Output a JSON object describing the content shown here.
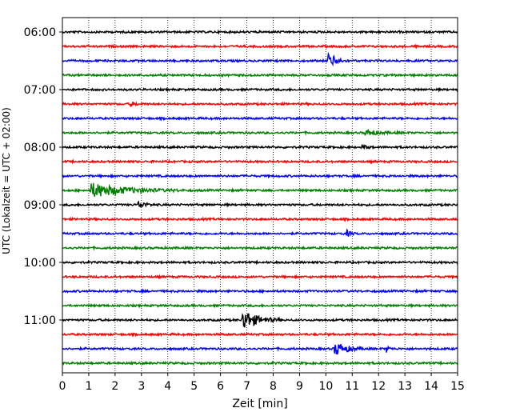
{
  "chart_data": {
    "type": "line",
    "title": "",
    "xlabel": "Zeit  [min]",
    "ylabel": "UTC (Lokalzeit = UTC + 02:00)",
    "xlim": [
      0,
      15
    ],
    "x_ticks": [
      "0",
      "1",
      "2",
      "3",
      "4",
      "5",
      "6",
      "7",
      "8",
      "9",
      "10",
      "11",
      "12",
      "13",
      "14",
      "15"
    ],
    "y_tick_labels": [
      "06:00",
      "07:00",
      "08:00",
      "09:00",
      "10:00",
      "11:00"
    ],
    "grid": {
      "vertical_dotted": true
    },
    "trace_colors": [
      "#000000",
      "#ff0000",
      "#0000ff",
      "#008000"
    ],
    "traces": [
      {
        "start": "06:00",
        "color": "#000000",
        "events": []
      },
      {
        "start": "06:15",
        "color": "#ff0000",
        "events": []
      },
      {
        "start": "06:30",
        "color": "#0000ff",
        "events": [
          {
            "t_min": 10.1,
            "amplitude": 0.55,
            "duration_min": 0.8
          }
        ]
      },
      {
        "start": "06:45",
        "color": "#008000",
        "events": []
      },
      {
        "start": "07:00",
        "color": "#000000",
        "events": []
      },
      {
        "start": "07:15",
        "color": "#ff0000",
        "events": [
          {
            "t_min": 2.6,
            "amplitude": 0.15,
            "duration_min": 0.5
          }
        ]
      },
      {
        "start": "07:30",
        "color": "#0000ff",
        "events": []
      },
      {
        "start": "07:45",
        "color": "#008000",
        "events": [
          {
            "t_min": 11.5,
            "amplitude": 0.15,
            "duration_min": 1.5
          }
        ]
      },
      {
        "start": "08:00",
        "color": "#000000",
        "events": [
          {
            "t_min": 11.4,
            "amplitude": 0.2,
            "duration_min": 0.4
          }
        ]
      },
      {
        "start": "08:15",
        "color": "#ff0000",
        "events": []
      },
      {
        "start": "08:30",
        "color": "#0000ff",
        "events": []
      },
      {
        "start": "08:45",
        "color": "#008000",
        "events": [
          {
            "t_min": 1.1,
            "amplitude": 0.5,
            "duration_min": 3.5
          }
        ]
      },
      {
        "start": "09:00",
        "color": "#000000",
        "events": [
          {
            "t_min": 2.9,
            "amplitude": 0.3,
            "duration_min": 0.6
          }
        ]
      },
      {
        "start": "09:15",
        "color": "#ff0000",
        "events": []
      },
      {
        "start": "09:30",
        "color": "#0000ff",
        "events": [
          {
            "t_min": 10.8,
            "amplitude": 0.2,
            "duration_min": 0.4
          }
        ]
      },
      {
        "start": "09:45",
        "color": "#008000",
        "events": []
      },
      {
        "start": "10:00",
        "color": "#000000",
        "events": []
      },
      {
        "start": "10:15",
        "color": "#ff0000",
        "events": []
      },
      {
        "start": "10:30",
        "color": "#0000ff",
        "events": []
      },
      {
        "start": "10:45",
        "color": "#008000",
        "events": []
      },
      {
        "start": "11:00",
        "color": "#000000",
        "events": [
          {
            "t_min": 6.85,
            "amplitude": 0.7,
            "duration_min": 1.5
          }
        ]
      },
      {
        "start": "11:15",
        "color": "#ff0000",
        "events": []
      },
      {
        "start": "11:30",
        "color": "#0000ff",
        "events": [
          {
            "t_min": 10.35,
            "amplitude": 0.5,
            "duration_min": 1.2
          },
          {
            "t_min": 12.3,
            "amplitude": 0.2,
            "duration_min": 0.3
          }
        ]
      },
      {
        "start": "11:45",
        "color": "#008000",
        "events": []
      }
    ]
  }
}
